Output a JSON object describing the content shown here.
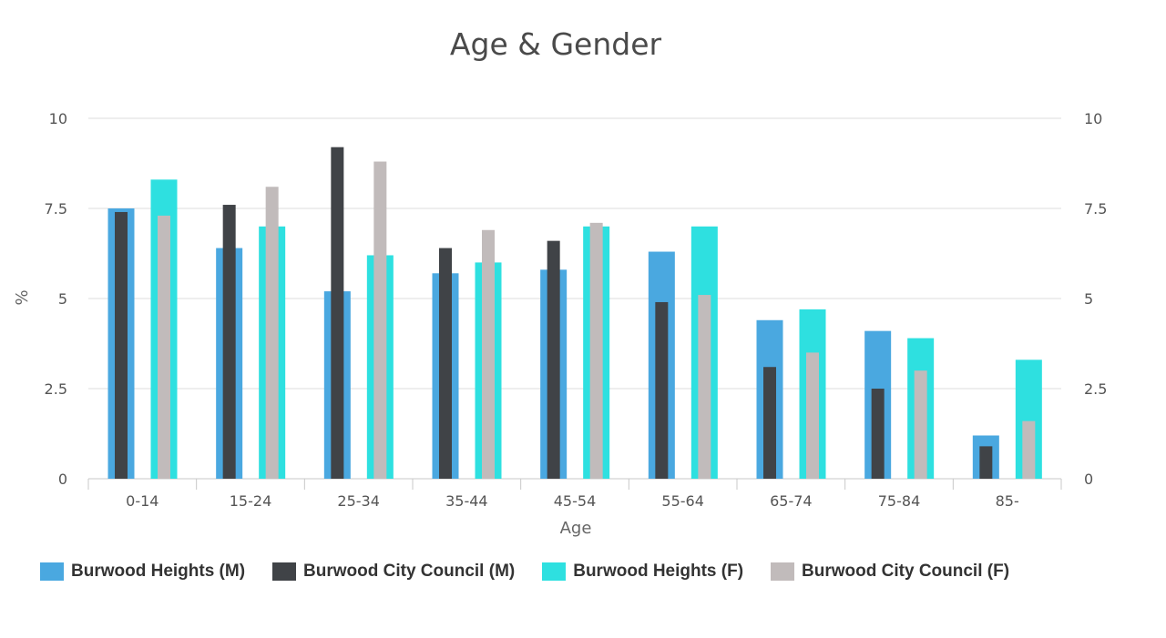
{
  "chart_data": {
    "type": "bar",
    "title": "Age & Gender",
    "xlabel": "Age",
    "ylabel": "%",
    "ylim": [
      0,
      10
    ],
    "yticks": [
      "0",
      "2.5",
      "5",
      "7.5",
      "10"
    ],
    "grid": true,
    "legend_position": "bottom",
    "categories": [
      "0-14",
      "15-24",
      "25-34",
      "35-44",
      "45-54",
      "55-64",
      "65-74",
      "75-84",
      "85-"
    ],
    "series": [
      {
        "name": "Burwood Heights (M)",
        "color": "#4aa8e0",
        "values": [
          7.5,
          6.4,
          5.2,
          5.7,
          5.8,
          6.3,
          4.4,
          4.1,
          1.2
        ]
      },
      {
        "name": "Burwood City Council (M)",
        "color": "#404347",
        "values": [
          7.4,
          7.6,
          9.2,
          6.4,
          6.6,
          4.9,
          3.1,
          2.5,
          0.9
        ]
      },
      {
        "name": "Burwood Heights (F)",
        "color": "#2ee0e0",
        "values": [
          8.3,
          7.0,
          6.2,
          6.0,
          7.0,
          7.0,
          4.7,
          3.9,
          3.3
        ]
      },
      {
        "name": "Burwood City Council (F)",
        "color": "#c1bbbb",
        "values": [
          7.3,
          8.1,
          8.8,
          6.9,
          7.1,
          5.1,
          3.5,
          3.0,
          1.6
        ]
      }
    ]
  }
}
